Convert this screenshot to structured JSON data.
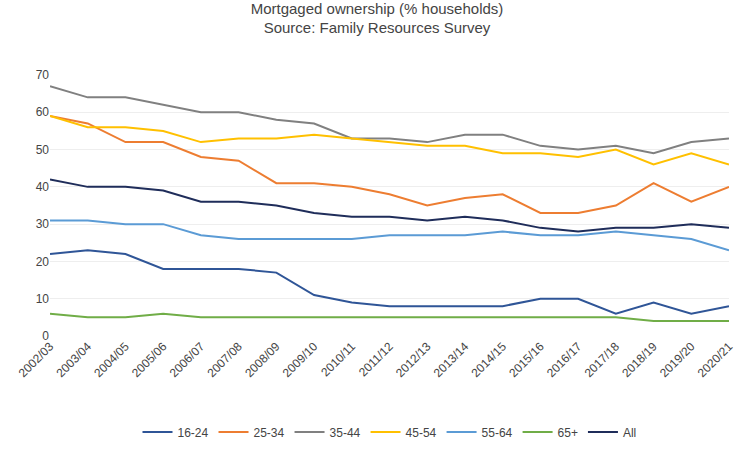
{
  "chart_data": {
    "type": "line",
    "title": "Mortgaged ownership (% households)\nSource: Family Resources Survey",
    "categories": [
      "2002/03",
      "2003/04",
      "2004/05",
      "2005/06",
      "2006/07",
      "2007/08",
      "2008/09",
      "2009/10",
      "2010/11",
      "2011/12",
      "2012/13",
      "2013/14",
      "2014/15",
      "2015/16",
      "2016/17",
      "2017/18",
      "2018/19",
      "2019/20",
      "2020/21"
    ],
    "series": [
      {
        "name": "16-24",
        "color": "#2f5597",
        "values": [
          22,
          23,
          22,
          18,
          18,
          18,
          17,
          11,
          9,
          8,
          8,
          8,
          8,
          10,
          10,
          6,
          9,
          6,
          8
        ]
      },
      {
        "name": "25-34",
        "color": "#ed7d31",
        "values": [
          59,
          57,
          52,
          52,
          48,
          47,
          41,
          41,
          40,
          38,
          35,
          37,
          38,
          33,
          33,
          35,
          41,
          36,
          40
        ]
      },
      {
        "name": "35-44",
        "color": "#808080",
        "values": [
          67,
          64,
          64,
          62,
          60,
          60,
          58,
          57,
          53,
          53,
          52,
          54,
          54,
          51,
          50,
          51,
          49,
          52,
          53
        ]
      },
      {
        "name": "45-54",
        "color": "#ffc000",
        "values": [
          59,
          56,
          56,
          55,
          52,
          53,
          53,
          54,
          53,
          52,
          51,
          51,
          49,
          49,
          48,
          50,
          46,
          49,
          46
        ]
      },
      {
        "name": "55-64",
        "color": "#5b9bd5",
        "values": [
          31,
          31,
          30,
          30,
          27,
          26,
          26,
          26,
          26,
          27,
          27,
          27,
          28,
          27,
          27,
          28,
          27,
          26,
          23
        ]
      },
      {
        "name": "65+",
        "color": "#70ad47",
        "values": [
          6,
          5,
          5,
          6,
          5,
          5,
          5,
          5,
          5,
          5,
          5,
          5,
          5,
          5,
          5,
          5,
          4,
          4,
          4
        ]
      },
      {
        "name": "All",
        "color": "#1f2d5a",
        "values": [
          42,
          40,
          40,
          39,
          36,
          36,
          35,
          33,
          32,
          32,
          31,
          32,
          31,
          29,
          28,
          29,
          29,
          30,
          29
        ]
      }
    ],
    "ylim": [
      0,
      70
    ],
    "yticks": [
      0,
      10,
      20,
      30,
      40,
      50,
      60,
      70
    ],
    "grid": true,
    "legend": "bottom"
  }
}
